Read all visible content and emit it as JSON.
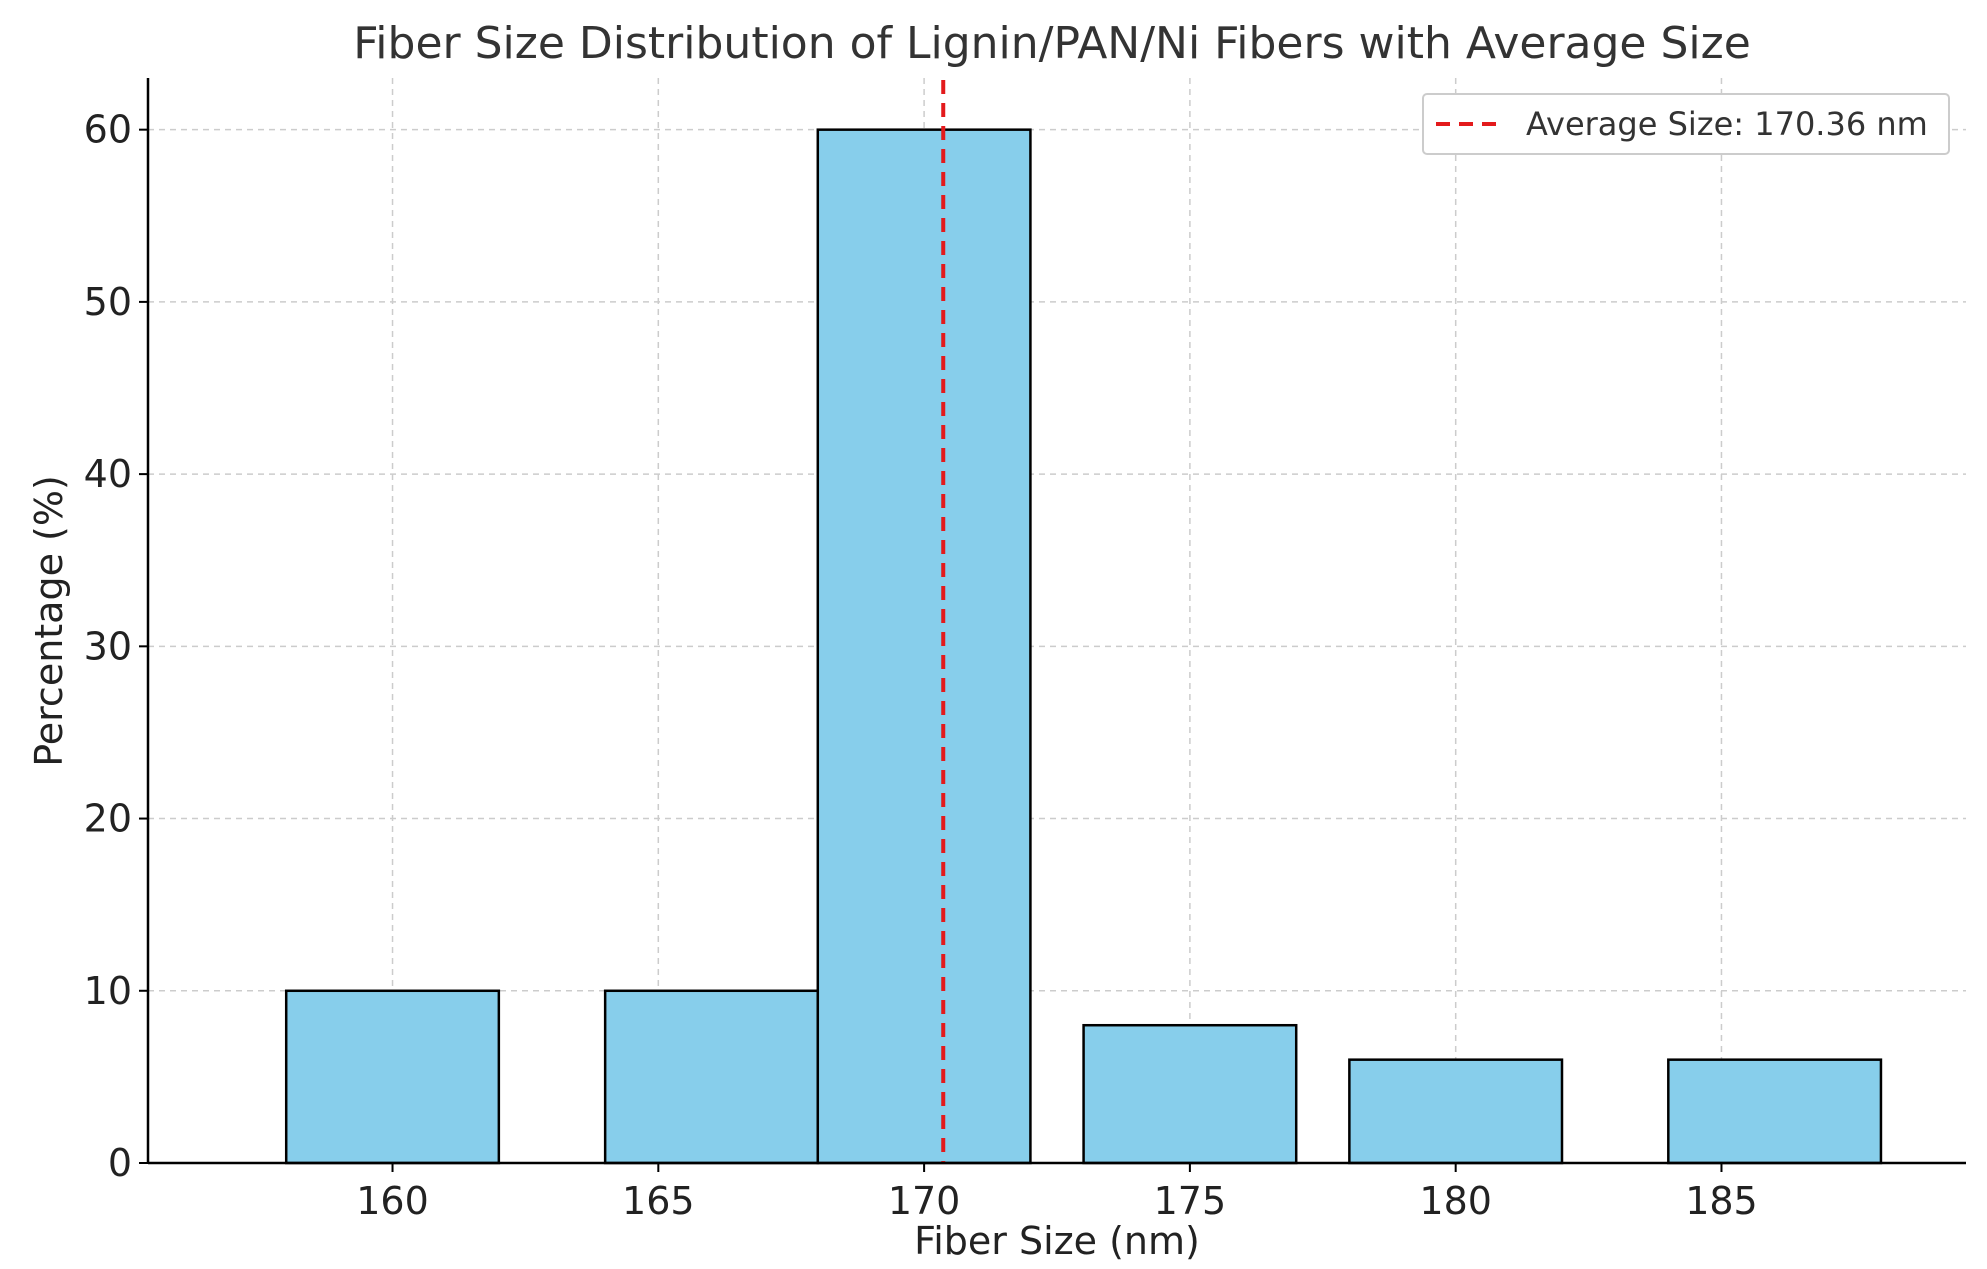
{
  "chart_data": {
    "type": "bar",
    "title": "Fiber Size Distribution of Lignin/PAN/Ni Fibers with Average Size",
    "xlabel": "Fiber Size (nm)",
    "ylabel": "Percentage (%)",
    "xlim": [
      155.4,
      189.6
    ],
    "ylim": [
      0,
      63
    ],
    "bar_width": 4,
    "grid": true,
    "bars": [
      {
        "x": 160,
        "value": 10
      },
      {
        "x": 166,
        "value": 10
      },
      {
        "x": 170,
        "value": 60
      },
      {
        "x": 175,
        "value": 8
      },
      {
        "x": 180,
        "value": 6
      },
      {
        "x": 186,
        "value": 6
      }
    ],
    "x_ticks": [
      160,
      165,
      170,
      175,
      180,
      185
    ],
    "y_ticks": [
      0,
      10,
      20,
      30,
      40,
      50,
      60
    ],
    "average": {
      "value": 170.36,
      "label": "Average Size: 170.36 nm"
    },
    "legend_position": "top-right",
    "colors": {
      "bar_fill": "#87CEEB",
      "bar_edge": "#000000",
      "average_line": "#e31a1c",
      "grid": "#cccccc"
    }
  }
}
